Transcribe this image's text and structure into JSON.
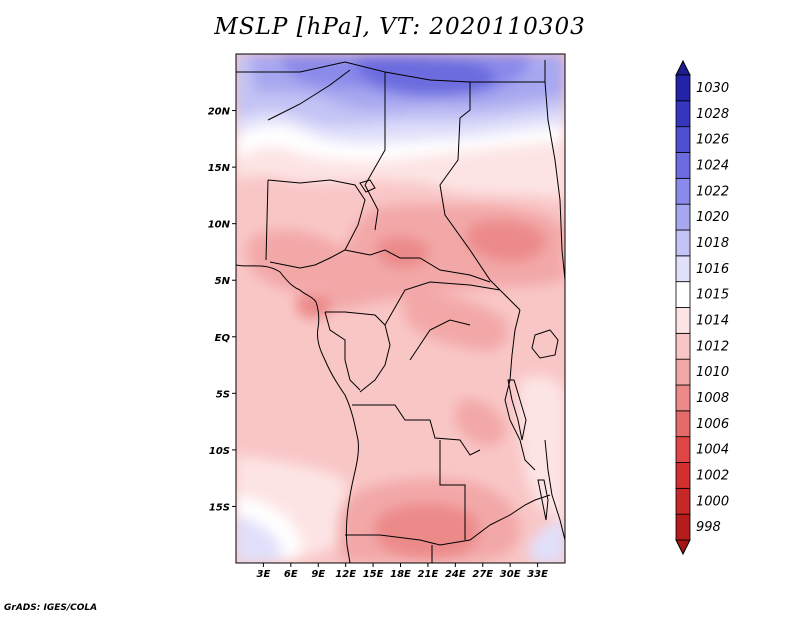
{
  "title": "MSLP [hPa], VT: 2020110303",
  "credit": "GrADS: IGES/COLA",
  "map": {
    "lon_range": [
      0,
      36
    ],
    "lat_range": [
      -20,
      25
    ],
    "lon_ticks": [
      {
        "value": 3,
        "label": "3E"
      },
      {
        "value": 6,
        "label": "6E"
      },
      {
        "value": 9,
        "label": "9E"
      },
      {
        "value": 12,
        "label": "12E"
      },
      {
        "value": 15,
        "label": "15E"
      },
      {
        "value": 18,
        "label": "18E"
      },
      {
        "value": 21,
        "label": "21E"
      },
      {
        "value": 24,
        "label": "24E"
      },
      {
        "value": 27,
        "label": "27E"
      },
      {
        "value": 30,
        "label": "30E"
      },
      {
        "value": 33,
        "label": "33E"
      }
    ],
    "lat_ticks": [
      {
        "value": 20,
        "label": "20N"
      },
      {
        "value": 15,
        "label": "15N"
      },
      {
        "value": 10,
        "label": "10N"
      },
      {
        "value": 5,
        "label": "5N"
      },
      {
        "value": 0,
        "label": "EQ"
      },
      {
        "value": -5,
        "label": "5S"
      },
      {
        "value": -10,
        "label": "10S"
      },
      {
        "value": -15,
        "label": "15S"
      }
    ]
  },
  "colorbar": {
    "levels": [
      {
        "label": "998",
        "color": "#b71c1c"
      },
      {
        "label": "1000",
        "color": "#c62828"
      },
      {
        "label": "1002",
        "color": "#d32f2f"
      },
      {
        "label": "1004",
        "color": "#e04545"
      },
      {
        "label": "1006",
        "color": "#e56a6a"
      },
      {
        "label": "1008",
        "color": "#ec8a8a"
      },
      {
        "label": "1010",
        "color": "#f3a8a8"
      },
      {
        "label": "1012",
        "color": "#f9c6c6"
      },
      {
        "label": "1014",
        "color": "#fde4e4"
      },
      {
        "label": "1015",
        "color": "#ffffff"
      },
      {
        "label": "1016",
        "color": "#e0e0fb"
      },
      {
        "label": "1018",
        "color": "#c3c3f5"
      },
      {
        "label": "1020",
        "color": "#a7a7f0"
      },
      {
        "label": "1022",
        "color": "#8a8aea"
      },
      {
        "label": "1024",
        "color": "#6c6cdf"
      },
      {
        "label": "1026",
        "color": "#4e4ed0"
      },
      {
        "label": "1028",
        "color": "#3535bd"
      },
      {
        "label": "1030",
        "color": "#2323a8"
      }
    ],
    "top_color": "#1c1c8e",
    "bottom_color": "#a31515"
  }
}
